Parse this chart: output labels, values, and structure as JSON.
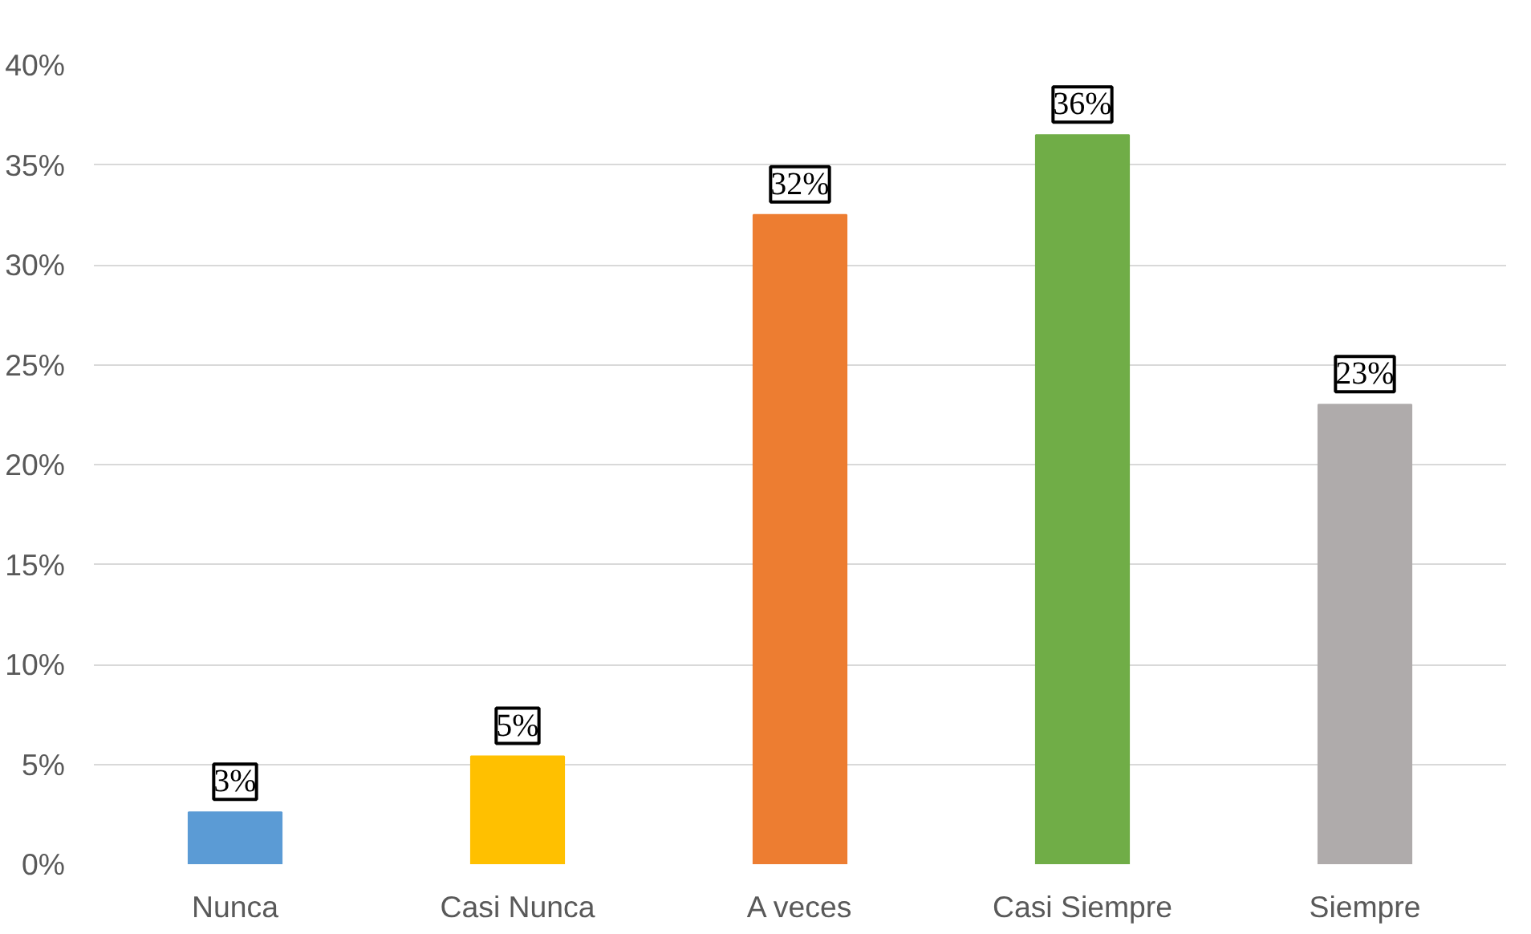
{
  "chart_data": {
    "type": "bar",
    "categories": [
      "Nunca",
      "Casi Nunca",
      "A veces",
      "Casi Siempre",
      "Siempre"
    ],
    "values": [
      2.6,
      5.4,
      32.5,
      36.5,
      23.0
    ],
    "colors": [
      "#5b9bd5",
      "#ffc000",
      "#ed7d31",
      "#70ad47",
      "#afabab"
    ],
    "value_labels": [
      "3%",
      "5%",
      "32%",
      "36%",
      "23%"
    ],
    "ylim": [
      0,
      40
    ],
    "yticks": [
      {
        "value": 0,
        "label": "0%"
      },
      {
        "value": 5,
        "label": "5%"
      },
      {
        "value": 10,
        "label": "10%"
      },
      {
        "value": 15,
        "label": "15%"
      },
      {
        "value": 20,
        "label": "20%"
      },
      {
        "value": 25,
        "label": "25%"
      },
      {
        "value": 30,
        "label": "30%"
      },
      {
        "value": 35,
        "label": "35%"
      },
      {
        "value": 40,
        "label": "40%"
      }
    ],
    "grid": "y"
  }
}
